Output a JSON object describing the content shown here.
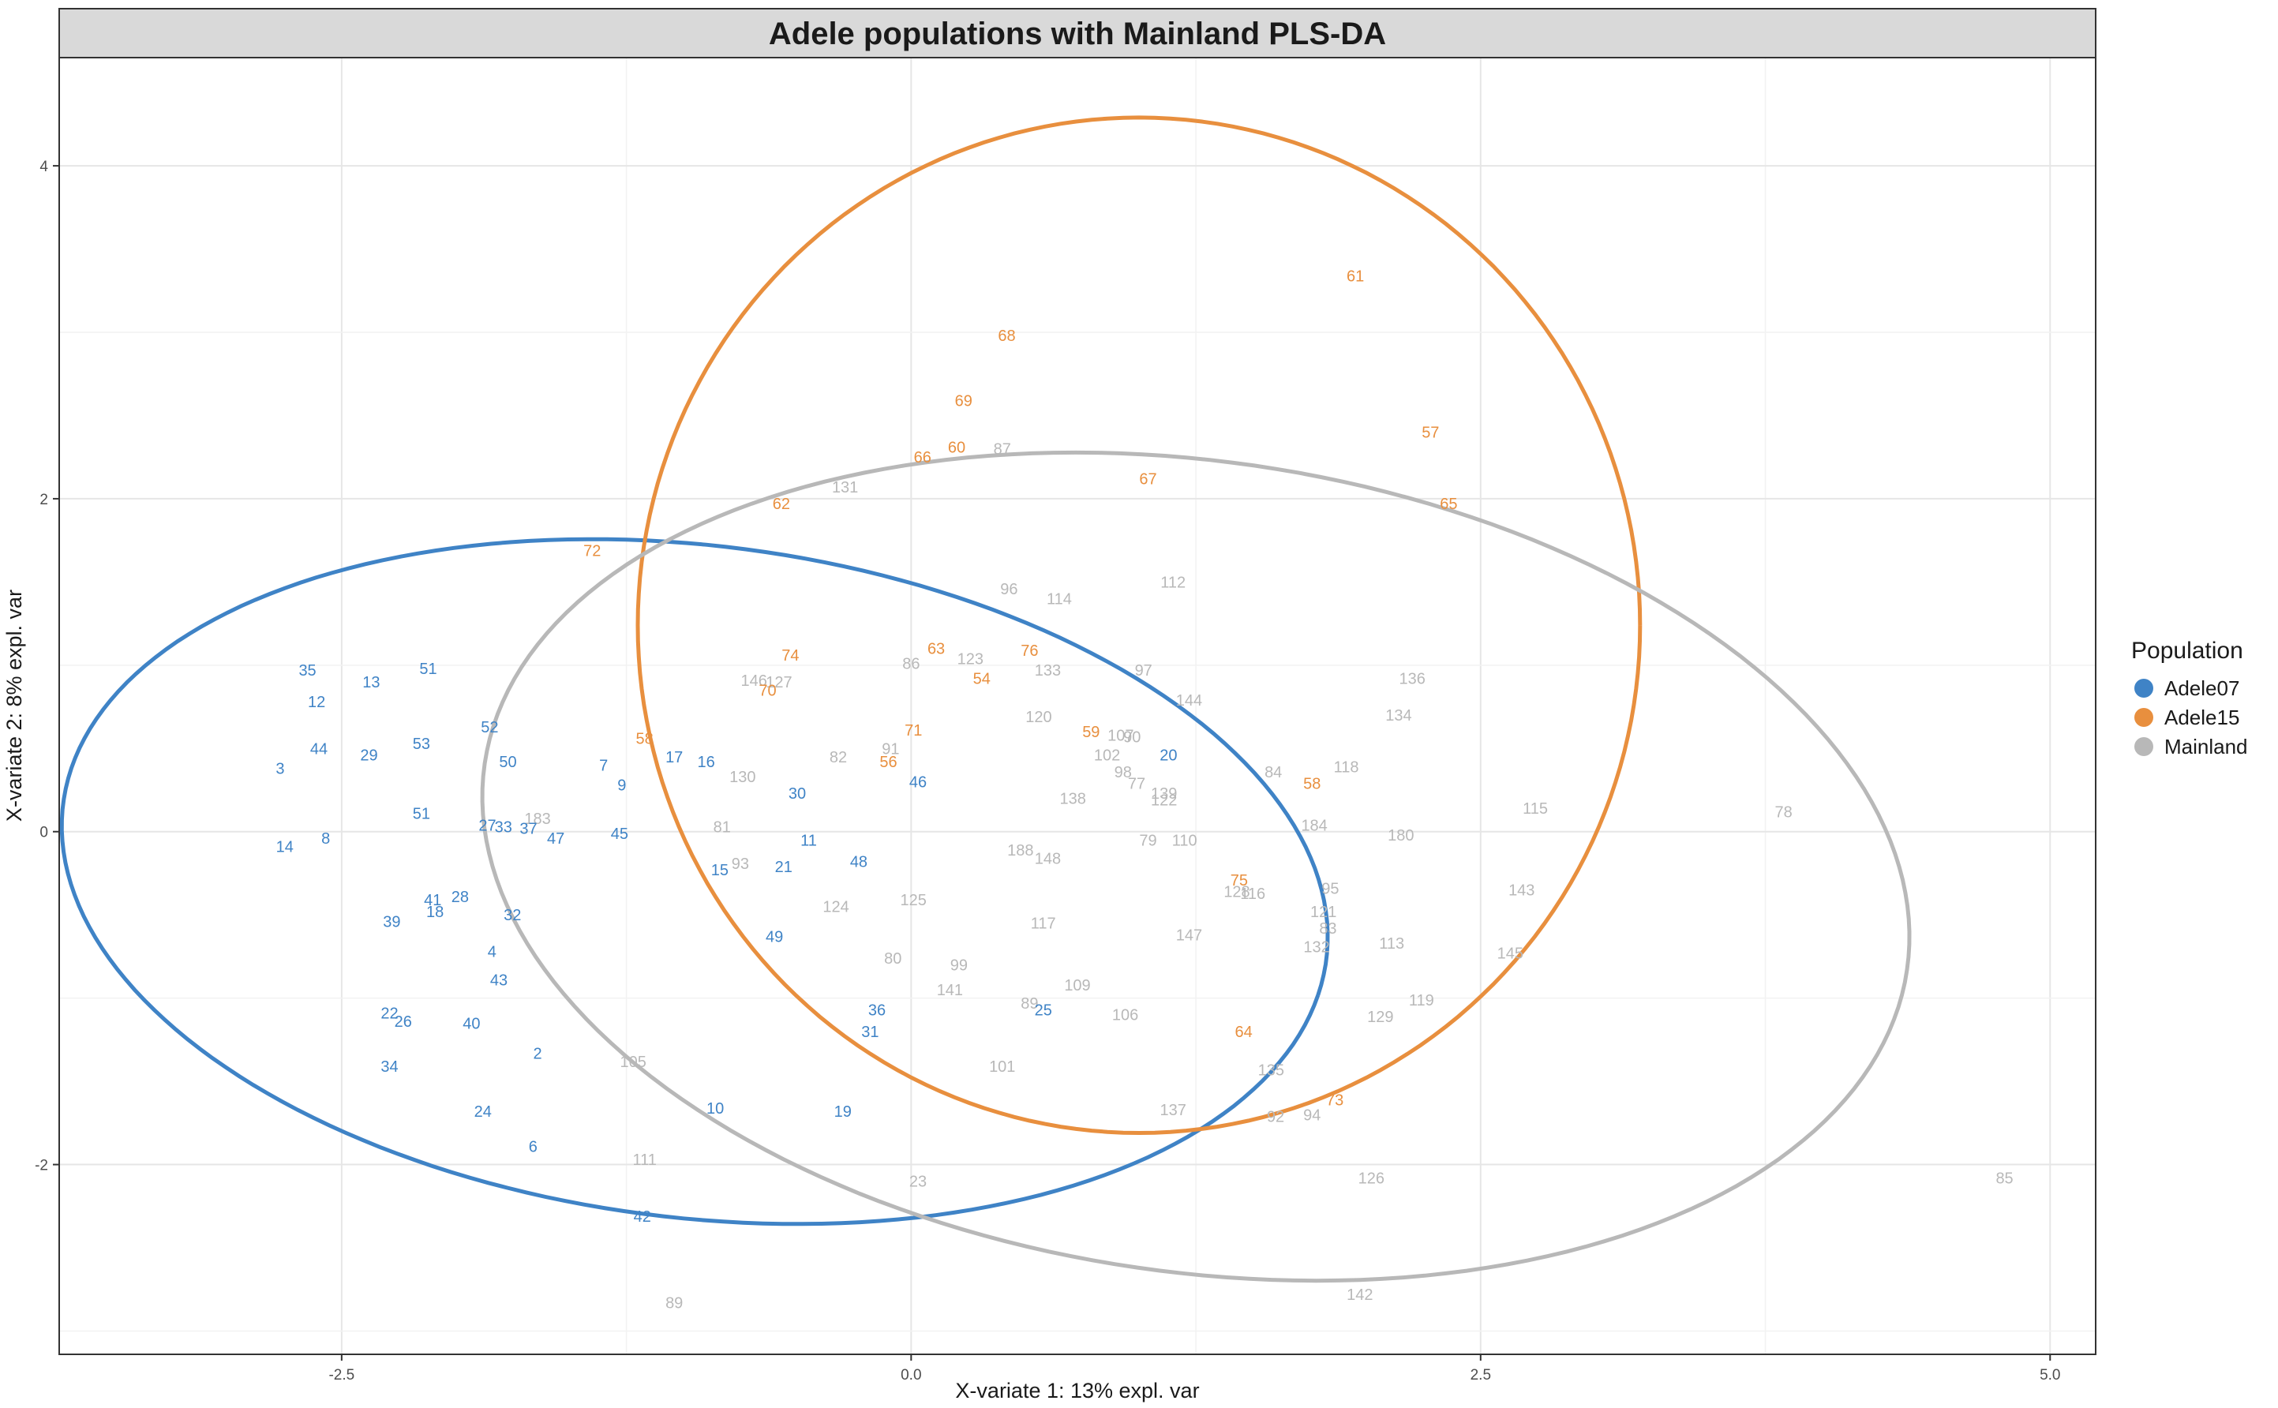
{
  "chart_data": {
    "type": "scatter",
    "title": "Adele populations with Mainland PLS-DA",
    "xlabel": "X-variate 1: 13% expl. var",
    "ylabel": "X-variate 2: 8% expl. var",
    "xlim": [
      -3.74,
      5.2
    ],
    "ylim": [
      -3.14,
      4.65
    ],
    "xticks": [
      -2.5,
      0.0,
      2.5,
      5.0
    ],
    "xtick_labels": [
      "-2.5",
      "0.0",
      "2.5",
      "5.0"
    ],
    "yticks": [
      -2,
      0,
      2,
      4
    ],
    "ytick_labels": [
      "-2",
      "0",
      "2",
      "4"
    ],
    "grid": true,
    "legend": {
      "title": "Population",
      "placement": "right",
      "entries": [
        "Adele07",
        "Adele15",
        "Mainland"
      ]
    },
    "colors": {
      "Adele07": "#3f83c6",
      "Adele15": "#e88f3e",
      "Mainland": "#b8b8b8"
    },
    "ellipses": [
      {
        "series": "Adele07",
        "center": [
          -0.95,
          -0.3
        ],
        "semi_axes": [
          2.82,
          2.0
        ],
        "angle_deg": -14
      },
      {
        "series": "Adele15",
        "center": [
          1.0,
          1.24
        ],
        "semi_axes": [
          2.2,
          3.05
        ],
        "angle_deg": 0
      },
      {
        "series": "Mainland",
        "center": [
          1.25,
          -0.21
        ],
        "semi_axes": [
          3.2,
          2.4
        ],
        "angle_deg": -18
      }
    ],
    "series": [
      {
        "name": "Adele07",
        "points": [
          {
            "label": "35",
            "x": -2.65,
            "y": 0.97
          },
          {
            "label": "13",
            "x": -2.37,
            "y": 0.9
          },
          {
            "label": "51",
            "x": -2.12,
            "y": 0.98
          },
          {
            "label": "12",
            "x": -2.61,
            "y": 0.78
          },
          {
            "label": "52",
            "x": -1.85,
            "y": 0.63
          },
          {
            "label": "44",
            "x": -2.6,
            "y": 0.5
          },
          {
            "label": "29",
            "x": -2.38,
            "y": 0.46
          },
          {
            "label": "53",
            "x": -2.15,
            "y": 0.53
          },
          {
            "label": "50",
            "x": -1.77,
            "y": 0.42
          },
          {
            "label": "3",
            "x": -2.77,
            "y": 0.38
          },
          {
            "label": "7",
            "x": -1.35,
            "y": 0.4
          },
          {
            "label": "9",
            "x": -1.27,
            "y": 0.28
          },
          {
            "label": "17",
            "x": -1.04,
            "y": 0.45
          },
          {
            "label": "16",
            "x": -0.9,
            "y": 0.42
          },
          {
            "label": "30",
            "x": -0.5,
            "y": 0.23
          },
          {
            "label": "46",
            "x": 0.03,
            "y": 0.3
          },
          {
            "label": "20",
            "x": 1.13,
            "y": 0.46
          },
          {
            "label": "51",
            "x": -2.15,
            "y": 0.11
          },
          {
            "label": "27",
            "x": -1.86,
            "y": 0.04
          },
          {
            "label": "33",
            "x": -1.79,
            "y": 0.03
          },
          {
            "label": "37",
            "x": -1.68,
            "y": 0.02
          },
          {
            "label": "47",
            "x": -1.56,
            "y": -0.04
          },
          {
            "label": "45",
            "x": -1.28,
            "y": -0.01
          },
          {
            "label": "14",
            "x": -2.75,
            "y": -0.09
          },
          {
            "label": "8",
            "x": -2.57,
            "y": -0.04
          },
          {
            "label": "11",
            "x": -0.45,
            "y": -0.05
          },
          {
            "label": "48",
            "x": -0.23,
            "y": -0.18
          },
          {
            "label": "15",
            "x": -0.84,
            "y": -0.23
          },
          {
            "label": "21",
            "x": -0.56,
            "y": -0.21
          },
          {
            "label": "41",
            "x": -2.1,
            "y": -0.41
          },
          {
            "label": "28",
            "x": -1.98,
            "y": -0.39
          },
          {
            "label": "18",
            "x": -2.09,
            "y": -0.48
          },
          {
            "label": "32",
            "x": -1.75,
            "y": -0.5
          },
          {
            "label": "39",
            "x": -2.28,
            "y": -0.54
          },
          {
            "label": "49",
            "x": -0.6,
            "y": -0.63
          },
          {
            "label": "4",
            "x": -1.84,
            "y": -0.72
          },
          {
            "label": "43",
            "x": -1.81,
            "y": -0.89
          },
          {
            "label": "36",
            "x": -0.15,
            "y": -1.07
          },
          {
            "label": "31",
            "x": -0.18,
            "y": -1.2
          },
          {
            "label": "25",
            "x": 0.58,
            "y": -1.07
          },
          {
            "label": "22",
            "x": -2.29,
            "y": -1.09
          },
          {
            "label": "26",
            "x": -2.23,
            "y": -1.14
          },
          {
            "label": "40",
            "x": -1.93,
            "y": -1.15
          },
          {
            "label": "2",
            "x": -1.64,
            "y": -1.33
          },
          {
            "label": "34",
            "x": -2.29,
            "y": -1.41
          },
          {
            "label": "10",
            "x": -0.86,
            "y": -1.66
          },
          {
            "label": "19",
            "x": -0.3,
            "y": -1.68
          },
          {
            "label": "24",
            "x": -1.88,
            "y": -1.68
          },
          {
            "label": "6",
            "x": -1.66,
            "y": -1.89
          },
          {
            "label": "42",
            "x": -1.18,
            "y": -2.31
          }
        ]
      },
      {
        "name": "Adele15",
        "points": [
          {
            "label": "61",
            "x": 1.95,
            "y": 3.34
          },
          {
            "label": "68",
            "x": 0.42,
            "y": 2.98
          },
          {
            "label": "69",
            "x": 0.23,
            "y": 2.59
          },
          {
            "label": "57",
            "x": 2.28,
            "y": 2.4
          },
          {
            "label": "60",
            "x": 0.2,
            "y": 2.31
          },
          {
            "label": "66",
            "x": 0.05,
            "y": 2.25
          },
          {
            "label": "67",
            "x": 1.04,
            "y": 2.12
          },
          {
            "label": "62",
            "x": -0.57,
            "y": 1.97
          },
          {
            "label": "65",
            "x": 2.36,
            "y": 1.97
          },
          {
            "label": "72",
            "x": -1.4,
            "y": 1.69
          },
          {
            "label": "74",
            "x": -0.53,
            "y": 1.06
          },
          {
            "label": "63",
            "x": 0.11,
            "y": 1.1
          },
          {
            "label": "76",
            "x": 0.52,
            "y": 1.09
          },
          {
            "label": "54",
            "x": 0.31,
            "y": 0.92
          },
          {
            "label": "70",
            "x": -0.63,
            "y": 0.85
          },
          {
            "label": "71",
            "x": 0.01,
            "y": 0.61
          },
          {
            "label": "59",
            "x": 0.79,
            "y": 0.6
          },
          {
            "label": "58",
            "x": -1.17,
            "y": 0.56
          },
          {
            "label": "56",
            "x": -0.1,
            "y": 0.42
          },
          {
            "label": "58",
            "x": 1.76,
            "y": 0.29
          },
          {
            "label": "75",
            "x": 1.44,
            "y": -0.29
          },
          {
            "label": "64",
            "x": 1.46,
            "y": -1.2
          },
          {
            "label": "73",
            "x": 1.86,
            "y": -1.61
          }
        ]
      },
      {
        "name": "Mainland",
        "points": [
          {
            "label": "131",
            "x": -0.29,
            "y": 2.07
          },
          {
            "label": "87",
            "x": 0.4,
            "y": 2.3
          },
          {
            "label": "96",
            "x": 0.43,
            "y": 1.46
          },
          {
            "label": "114",
            "x": 0.65,
            "y": 1.4
          },
          {
            "label": "112",
            "x": 1.15,
            "y": 1.5
          },
          {
            "label": "86",
            "x": 0.0,
            "y": 1.01
          },
          {
            "label": "123",
            "x": 0.26,
            "y": 1.04
          },
          {
            "label": "133",
            "x": 0.6,
            "y": 0.97
          },
          {
            "label": "97",
            "x": 1.02,
            "y": 0.97
          },
          {
            "label": "146",
            "x": -0.69,
            "y": 0.91
          },
          {
            "label": "127",
            "x": -0.58,
            "y": 0.9
          },
          {
            "label": "136",
            "x": 2.2,
            "y": 0.92
          },
          {
            "label": "144",
            "x": 1.22,
            "y": 0.79
          },
          {
            "label": "120",
            "x": 0.56,
            "y": 0.69
          },
          {
            "label": "134",
            "x": 2.14,
            "y": 0.7
          },
          {
            "label": "107",
            "x": 0.92,
            "y": 0.58
          },
          {
            "label": "90",
            "x": 0.97,
            "y": 0.57
          },
          {
            "label": "91",
            "x": -0.09,
            "y": 0.5
          },
          {
            "label": "82",
            "x": -0.32,
            "y": 0.45
          },
          {
            "label": "102",
            "x": 0.86,
            "y": 0.46
          },
          {
            "label": "84",
            "x": 1.59,
            "y": 0.36
          },
          {
            "label": "118",
            "x": 1.91,
            "y": 0.39
          },
          {
            "label": "98",
            "x": 0.93,
            "y": 0.36
          },
          {
            "label": "77",
            "x": 0.99,
            "y": 0.29
          },
          {
            "label": "139",
            "x": 1.11,
            "y": 0.23
          },
          {
            "label": "122",
            "x": 1.11,
            "y": 0.19
          },
          {
            "label": "130",
            "x": -0.74,
            "y": 0.33
          },
          {
            "label": "138",
            "x": 0.71,
            "y": 0.2
          },
          {
            "label": "115",
            "x": 2.74,
            "y": 0.14
          },
          {
            "label": "78",
            "x": 3.83,
            "y": 0.12
          },
          {
            "label": "183",
            "x": -1.64,
            "y": 0.08
          },
          {
            "label": "81",
            "x": -0.83,
            "y": 0.03
          },
          {
            "label": "184",
            "x": 1.77,
            "y": 0.04
          },
          {
            "label": "180",
            "x": 2.15,
            "y": -0.02
          },
          {
            "label": "79",
            "x": 1.04,
            "y": -0.05
          },
          {
            "label": "110",
            "x": 1.2,
            "y": -0.05
          },
          {
            "label": "188",
            "x": 0.48,
            "y": -0.11
          },
          {
            "label": "148",
            "x": 0.6,
            "y": -0.16
          },
          {
            "label": "93",
            "x": -0.75,
            "y": -0.19
          },
          {
            "label": "124",
            "x": -0.33,
            "y": -0.45
          },
          {
            "label": "125",
            "x": 0.01,
            "y": -0.41
          },
          {
            "label": "128",
            "x": 1.43,
            "y": -0.36
          },
          {
            "label": "116",
            "x": 1.5,
            "y": -0.37
          },
          {
            "label": "95",
            "x": 1.84,
            "y": -0.34
          },
          {
            "label": "143",
            "x": 2.68,
            "y": -0.35
          },
          {
            "label": "121",
            "x": 1.81,
            "y": -0.48
          },
          {
            "label": "83",
            "x": 1.83,
            "y": -0.58
          },
          {
            "label": "117",
            "x": 0.58,
            "y": -0.55
          },
          {
            "label": "147",
            "x": 1.22,
            "y": -0.62
          },
          {
            "label": "132",
            "x": 1.78,
            "y": -0.69
          },
          {
            "label": "113",
            "x": 2.11,
            "y": -0.67
          },
          {
            "label": "145",
            "x": 2.63,
            "y": -0.73
          },
          {
            "label": "80",
            "x": -0.08,
            "y": -0.76
          },
          {
            "label": "99",
            "x": 0.21,
            "y": -0.8
          },
          {
            "label": "141",
            "x": 0.17,
            "y": -0.95
          },
          {
            "label": "109",
            "x": 0.73,
            "y": -0.92
          },
          {
            "label": "89",
            "x": 0.52,
            "y": -1.03
          },
          {
            "label": "106",
            "x": 0.94,
            "y": -1.1
          },
          {
            "label": "119",
            "x": 2.24,
            "y": -1.01
          },
          {
            "label": "129",
            "x": 2.06,
            "y": -1.11
          },
          {
            "label": "135",
            "x": 1.58,
            "y": -1.43
          },
          {
            "label": "101",
            "x": 0.4,
            "y": -1.41
          },
          {
            "label": "105",
            "x": -1.22,
            "y": -1.38
          },
          {
            "label": "137",
            "x": 1.15,
            "y": -1.67
          },
          {
            "label": "92",
            "x": 1.6,
            "y": -1.71
          },
          {
            "label": "94",
            "x": 1.76,
            "y": -1.7
          },
          {
            "label": "111",
            "x": -1.17,
            "y": -1.97
          },
          {
            "label": "126",
            "x": 2.02,
            "y": -2.08
          },
          {
            "label": "85",
            "x": 4.8,
            "y": -2.08
          },
          {
            "label": "23",
            "x": 0.03,
            "y": -2.1
          },
          {
            "label": "142",
            "x": 1.97,
            "y": -2.78
          },
          {
            "label": "89",
            "x": -1.04,
            "y": -2.83
          }
        ]
      }
    ]
  }
}
